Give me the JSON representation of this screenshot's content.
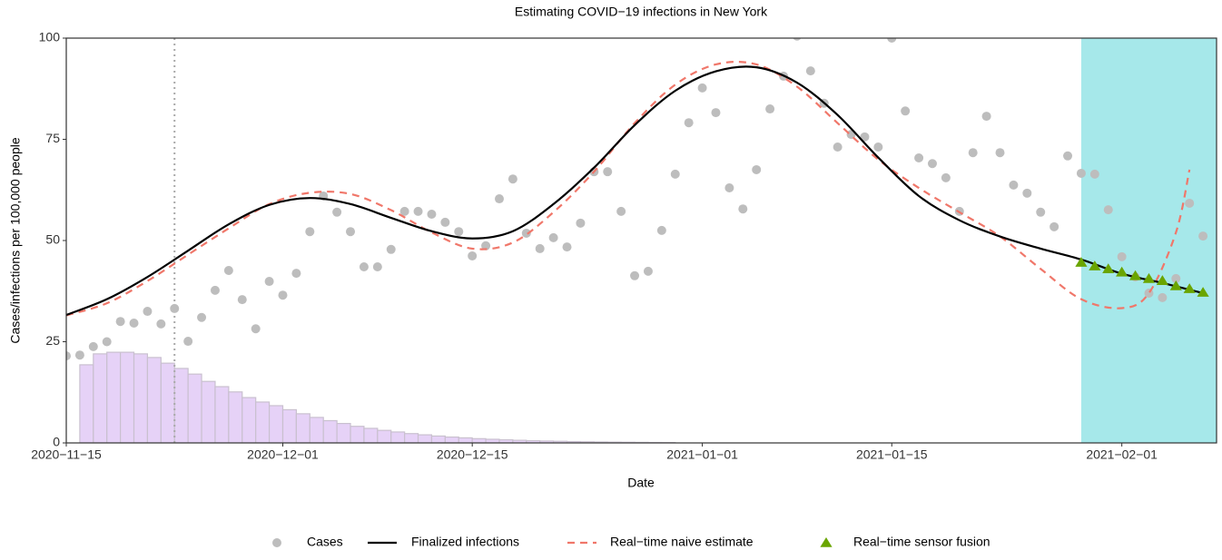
{
  "chart_data": {
    "type": "line",
    "title": "Estimating COVID−19 infections in New York",
    "x_label": "Date",
    "y_label": "Cases/infections per 100,000 people",
    "xlim": [
      "2020-11-15",
      "2021-02-08"
    ],
    "xticks": [
      {
        "value": "2020-11-15",
        "label": "2020−11−15"
      },
      {
        "value": "2020-12-01",
        "label": "2020−12−01"
      },
      {
        "value": "2020-12-15",
        "label": "2020−12−15"
      },
      {
        "value": "2021-01-01",
        "label": "2021−01−01"
      },
      {
        "value": "2021-01-15",
        "label": "2021−01−15"
      },
      {
        "value": "2021-02-01",
        "label": "2021−02−01"
      }
    ],
    "ylim": [
      0,
      100
    ],
    "yticks": [
      0,
      25,
      50,
      75,
      100
    ],
    "grid": false,
    "legend": "bottom",
    "vline": {
      "x": "2020-11-23",
      "color": "#a8a8a8"
    },
    "shade": {
      "start": "2021-01-29",
      "color": "#a6e8ea"
    },
    "histogram": {
      "color": "#e6d2f7",
      "edge": "#c9c0cf",
      "bins": [
        "2020-11-16",
        "2020-11-17",
        "2020-11-18",
        "2020-11-19",
        "2020-11-20",
        "2020-11-21",
        "2020-11-22",
        "2020-11-23",
        "2020-11-24",
        "2020-11-25",
        "2020-11-26",
        "2020-11-27",
        "2020-11-28",
        "2020-11-29",
        "2020-11-30",
        "2020-12-01",
        "2020-12-02",
        "2020-12-03",
        "2020-12-04",
        "2020-12-05",
        "2020-12-06",
        "2020-12-07",
        "2020-12-08",
        "2020-12-09",
        "2020-12-10",
        "2020-12-11",
        "2020-12-12",
        "2020-12-13",
        "2020-12-14",
        "2020-12-15",
        "2020-12-16",
        "2020-12-17",
        "2020-12-18",
        "2020-12-19",
        "2020-12-20",
        "2020-12-21",
        "2020-12-22",
        "2020-12-23",
        "2020-12-24",
        "2020-12-25",
        "2020-12-26",
        "2020-12-27",
        "2020-12-28",
        "2020-12-29",
        "2020-12-30"
      ],
      "values": [
        19.3,
        22,
        22.4,
        22.4,
        22,
        21.1,
        19.7,
        18.4,
        17,
        15.2,
        13.9,
        12.6,
        11.2,
        10.1,
        9.2,
        8.2,
        7.2,
        6.3,
        5.5,
        4.8,
        4.1,
        3.6,
        3.1,
        2.7,
        2.3,
        2,
        1.7,
        1.45,
        1.25,
        1.05,
        0.9,
        0.77,
        0.65,
        0.55,
        0.47,
        0.4,
        0.33,
        0.28,
        0.23,
        0.19,
        0.16,
        0.13,
        0.1,
        0.08
      ]
    },
    "series": [
      {
        "name": "Cases",
        "type": "scatter",
        "marker": "circle",
        "color": "#bdbdbd",
        "x": [
          "2020-11-15",
          "2020-11-16",
          "2020-11-17",
          "2020-11-18",
          "2020-11-19",
          "2020-11-20",
          "2020-11-21",
          "2020-11-22",
          "2020-11-23",
          "2020-11-24",
          "2020-11-25",
          "2020-11-26",
          "2020-11-27",
          "2020-11-28",
          "2020-11-29",
          "2020-11-30",
          "2020-12-01",
          "2020-12-02",
          "2020-12-03",
          "2020-12-04",
          "2020-12-05",
          "2020-12-06",
          "2020-12-07",
          "2020-12-08",
          "2020-12-09",
          "2020-12-10",
          "2020-12-11",
          "2020-12-12",
          "2020-12-13",
          "2020-12-14",
          "2020-12-15",
          "2020-12-16",
          "2020-12-17",
          "2020-12-18",
          "2020-12-19",
          "2020-12-20",
          "2020-12-21",
          "2020-12-22",
          "2020-12-23",
          "2020-12-24",
          "2020-12-25",
          "2020-12-26",
          "2020-12-27",
          "2020-12-28",
          "2020-12-29",
          "2020-12-30",
          "2020-12-31",
          "2021-01-01",
          "2021-01-02",
          "2021-01-03",
          "2021-01-04",
          "2021-01-05",
          "2021-01-06",
          "2021-01-07",
          "2021-01-08",
          "2021-01-09",
          "2021-01-10",
          "2021-01-11",
          "2021-01-12",
          "2021-01-13",
          "2021-01-14",
          "2021-01-15",
          "2021-01-16",
          "2021-01-17",
          "2021-01-18",
          "2021-01-19",
          "2021-01-20",
          "2021-01-21",
          "2021-01-22",
          "2021-01-23",
          "2021-01-24",
          "2021-01-25",
          "2021-01-26",
          "2021-01-27",
          "2021-01-28",
          "2021-01-29",
          "2021-01-30",
          "2021-01-31",
          "2021-02-01",
          "2021-02-02",
          "2021-02-03",
          "2021-02-04",
          "2021-02-05",
          "2021-02-06",
          "2021-02-07"
        ],
        "values": [
          21.5,
          21.7,
          23.8,
          25,
          30,
          29.6,
          32.5,
          29.4,
          33.2,
          25.1,
          31,
          37.7,
          42.6,
          35.4,
          28.2,
          39.9,
          36.5,
          41.9,
          52.2,
          61,
          57,
          52.2,
          43.5,
          43.5,
          47.8,
          57.2,
          57.2,
          56.5,
          54.5,
          52.2,
          46.2,
          48.7,
          60.3,
          65.2,
          51.8,
          48,
          50.7,
          48.4,
          54.3,
          67,
          67,
          57.2,
          41.3,
          42.4,
          52.5,
          66.4,
          79.1,
          87.7,
          81.6,
          63,
          57.8,
          67.5,
          82.5,
          90.6,
          100.5,
          91.9,
          83.9,
          73.1,
          76.2,
          75.6,
          73.1,
          100,
          82,
          70.4,
          69,
          65.5,
          57.2,
          71.7,
          80.7,
          71.7,
          63.7,
          61.7,
          57,
          53.4,
          70.9,
          66.6,
          66.4,
          57.6,
          46,
          41,
          37,
          35.9,
          40.6,
          59.2,
          51.1
        ]
      },
      {
        "name": "Finalized infections",
        "type": "line",
        "linestyle": "solid",
        "color": "#000000",
        "x": [
          "2020-11-15",
          "2020-11-18",
          "2020-11-21",
          "2020-11-24",
          "2020-11-27",
          "2020-11-30",
          "2020-12-03",
          "2020-12-06",
          "2020-12-09",
          "2020-12-12",
          "2020-12-15",
          "2020-12-18",
          "2020-12-21",
          "2020-12-24",
          "2020-12-27",
          "2020-12-30",
          "2021-01-02",
          "2021-01-05",
          "2021-01-08",
          "2021-01-11",
          "2021-01-14",
          "2021-01-17",
          "2021-01-20",
          "2021-01-23",
          "2021-01-26",
          "2021-01-29",
          "2021-02-01",
          "2021-02-04",
          "2021-02-07"
        ],
        "values": [
          31.6,
          35.5,
          41,
          47.5,
          54,
          58.8,
          60.5,
          59,
          55.6,
          52.3,
          50.5,
          52.3,
          59,
          68,
          78.5,
          87,
          91.8,
          92.8,
          89,
          81,
          70.5,
          61,
          55,
          51,
          48,
          45.3,
          41.8,
          39.5,
          37
        ]
      },
      {
        "name": "Real−time naive estimate",
        "type": "line",
        "linestyle": "dashed",
        "color": "#f0776a",
        "x": [
          "2020-11-15",
          "2020-11-18",
          "2020-11-21",
          "2020-11-24",
          "2020-11-27",
          "2020-11-30",
          "2020-12-03",
          "2020-12-06",
          "2020-12-09",
          "2020-12-12",
          "2020-12-15",
          "2020-12-18",
          "2020-12-21",
          "2020-12-24",
          "2020-12-27",
          "2020-12-30",
          "2021-01-02",
          "2021-01-05",
          "2021-01-08",
          "2021-01-11",
          "2021-01-14",
          "2021-01-17",
          "2021-01-20",
          "2021-01-23",
          "2021-01-26",
          "2021-01-29",
          "2021-02-01",
          "2021-02-03",
          "2021-02-05",
          "2021-02-06"
        ],
        "values": [
          31.5,
          34.5,
          40,
          46.5,
          53,
          59,
          61.8,
          61.5,
          57.5,
          52,
          48,
          49.5,
          57,
          67,
          79,
          88.5,
          93.5,
          93.5,
          88,
          79,
          70,
          63,
          57,
          51,
          43,
          35.5,
          33.3,
          37,
          52,
          67.5
        ]
      },
      {
        "name": "Real−time sensor fusion",
        "type": "scatter",
        "marker": "triangle",
        "color": "#6aa500",
        "x": [
          "2021-01-29",
          "2021-01-30",
          "2021-01-31",
          "2021-02-01",
          "2021-02-02",
          "2021-02-03",
          "2021-02-04",
          "2021-02-05",
          "2021-02-06",
          "2021-02-07"
        ],
        "values": [
          44.6,
          43.7,
          43,
          42.2,
          41.3,
          40.6,
          40.1,
          38.8,
          38.1,
          37.2
        ]
      }
    ]
  }
}
